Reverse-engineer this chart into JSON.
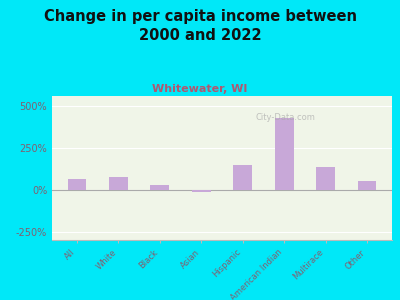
{
  "title": "Change in per capita income between\n2000 and 2022",
  "subtitle": "Whitewater, WI",
  "categories": [
    "All",
    "White",
    "Black",
    "Asian",
    "Hispanic",
    "American Indian",
    "Multirace",
    "Other"
  ],
  "values": [
    65,
    75,
    30,
    -15,
    145,
    430,
    135,
    55
  ],
  "bar_color": "#c8a8d8",
  "background_outer": "#00e8f8",
  "background_chart_top": "#f0f5e8",
  "background_chart_bottom": "#e8f2d8",
  "title_color": "#111111",
  "subtitle_color": "#b05870",
  "axis_label_color": "#806070",
  "tick_label_color": "#806070",
  "ylim": [
    -300,
    560
  ],
  "yticks": [
    -250,
    0,
    250,
    500
  ],
  "ytick_labels": [
    "-250%",
    "0%",
    "250%",
    "500%"
  ],
  "title_fontsize": 10.5,
  "subtitle_fontsize": 8,
  "bar_width": 0.45
}
